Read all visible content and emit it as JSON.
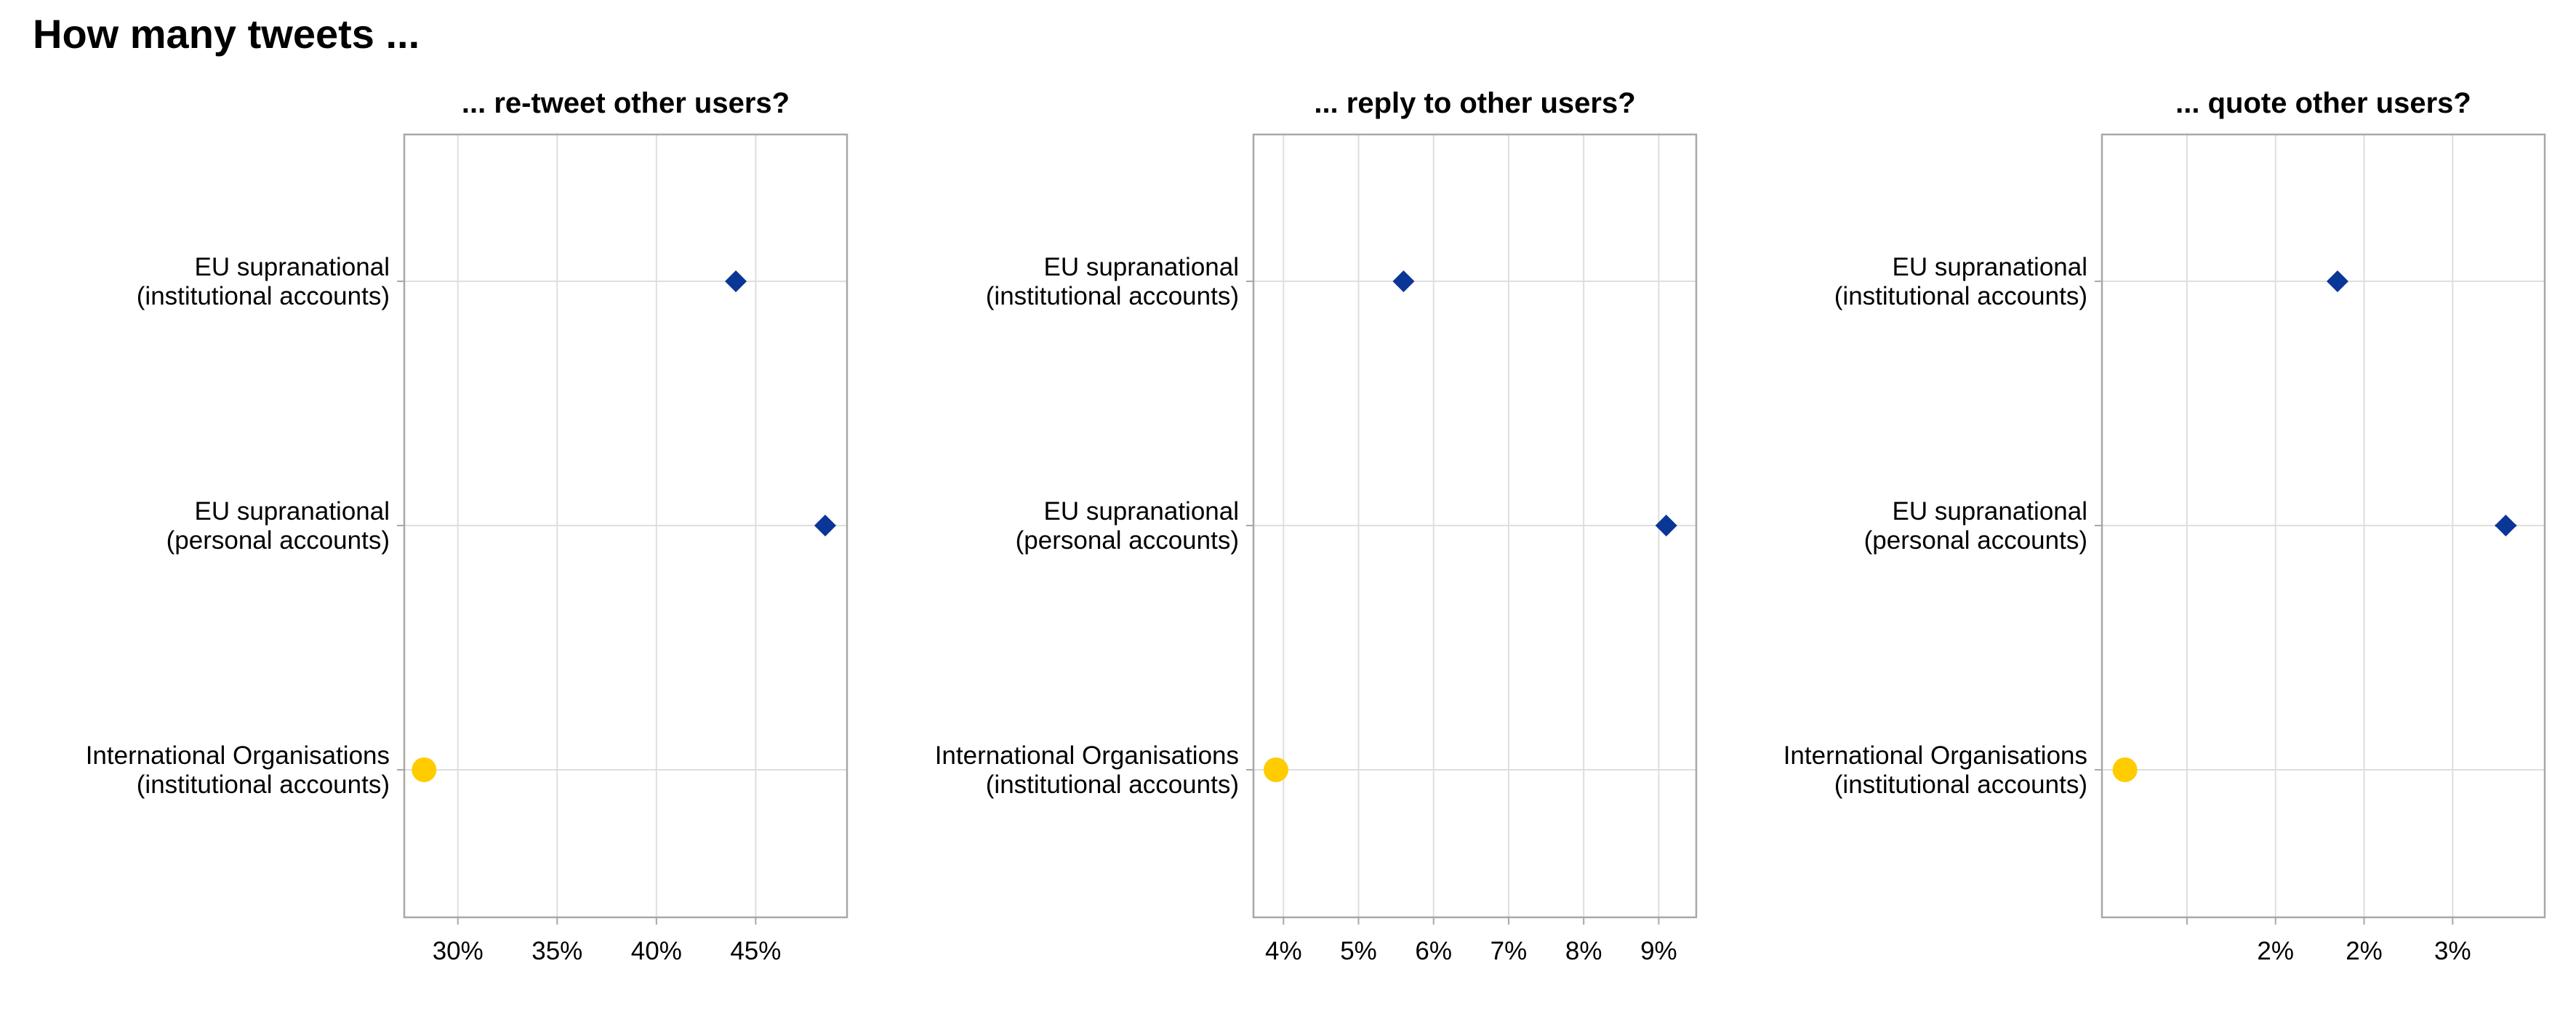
{
  "title": "How many tweets ...",
  "colors": {
    "eu": "#0a3696",
    "io": "#ffcc00",
    "grid": "#dedede",
    "frame": "#a8a8a8"
  },
  "chart_data": [
    {
      "type": "scatter",
      "title": "... re-tweet other users?",
      "xlabel": "",
      "ylabel": "",
      "xlim": [
        27.3,
        49.6
      ],
      "x_ticks": [
        30,
        35,
        40,
        45
      ],
      "x_tick_labels": [
        "30%",
        "35%",
        "40%",
        "45%"
      ],
      "categories": [
        "EU supranational\n(institutional accounts)",
        "EU supranational\n(personal accounts)",
        "International Organisations\n(institutional accounts)"
      ],
      "values": [
        44.0,
        48.5,
        28.3
      ],
      "markers": [
        "diamond",
        "diamond",
        "circle"
      ],
      "error": [
        0,
        0,
        0
      ],
      "grid": true,
      "legend": "none"
    },
    {
      "type": "scatter",
      "title": "... reply to other users?",
      "xlabel": "",
      "ylabel": "",
      "xlim": [
        3.6,
        9.5
      ],
      "x_ticks": [
        4,
        5,
        6,
        7,
        8,
        9
      ],
      "x_tick_labels": [
        "4%",
        "5%",
        "6%",
        "7%",
        "8%",
        "9%"
      ],
      "categories": [
        "EU supranational\n(institutional accounts)",
        "EU supranational\n(personal accounts)",
        "International Organisations\n(institutional accounts)"
      ],
      "values": [
        5.6,
        9.1,
        3.9
      ],
      "markers": [
        "diamond",
        "diamond",
        "circle"
      ],
      "error": [
        0,
        0,
        0
      ],
      "grid": true,
      "legend": "none"
    },
    {
      "type": "scatter",
      "title": "... quote other users?",
      "xlabel": "",
      "ylabel": "",
      "xlim": [
        1.02,
        3.52
      ],
      "x_ticks": [
        1.5,
        2.0,
        2.5,
        3.0
      ],
      "x_tick_labels": [
        "",
        "2%",
        "2%",
        "3%"
      ],
      "categories": [
        "EU supranational\n(institutional accounts)",
        "EU supranational\n(personal accounts)",
        "International Organisations\n(institutional accounts)"
      ],
      "values": [
        2.35,
        3.3,
        1.15
      ],
      "markers": [
        "diamond",
        "diamond",
        "circle"
      ],
      "error": [
        0,
        0.06,
        0
      ],
      "grid": true,
      "legend": "none"
    }
  ]
}
